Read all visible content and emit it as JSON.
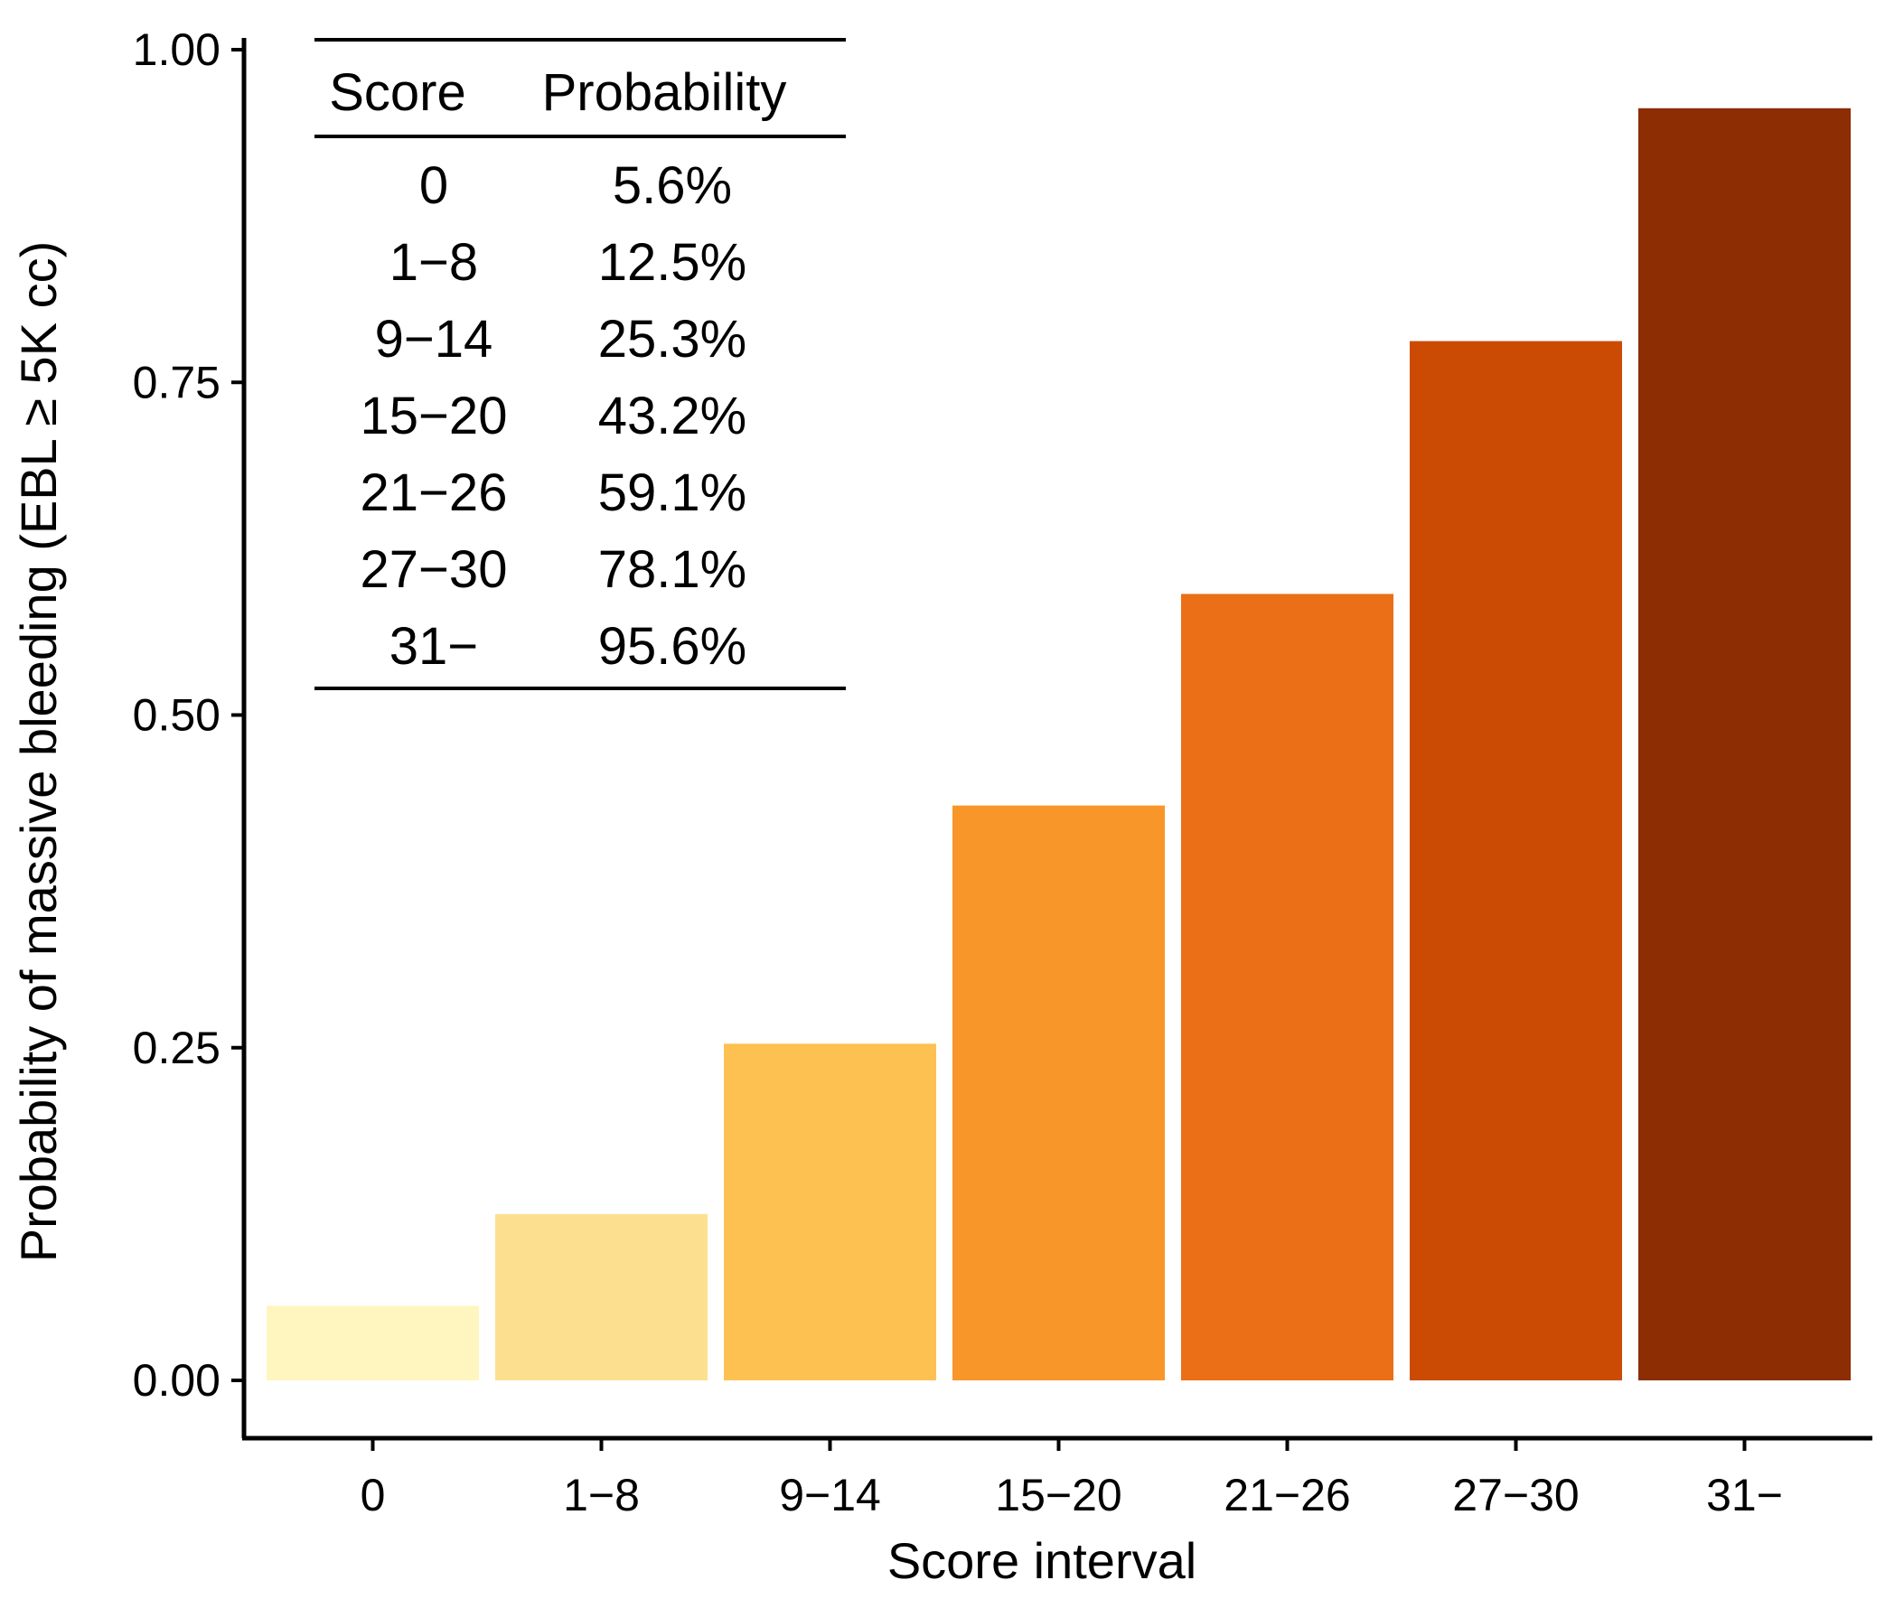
{
  "chart_data": {
    "type": "bar",
    "title": "",
    "xlabel": "Score interval",
    "ylabel": "Probability of massive bleeding (EBL ≥ 5K cc)",
    "categories": [
      "0",
      "1−8",
      "9−14",
      "15−20",
      "21−26",
      "27−30",
      "31−"
    ],
    "values": [
      0.056,
      0.125,
      0.253,
      0.432,
      0.591,
      0.781,
      0.956
    ],
    "colors": [
      "#FFF5BE",
      "#FDE08F",
      "#FDC152",
      "#F99629",
      "#EA6F16",
      "#CB4B05",
      "#8C2D04"
    ],
    "ylim": [
      0,
      1
    ],
    "yticks": [
      "0.00",
      "0.25",
      "0.50",
      "0.75",
      "1.00"
    ],
    "ytick_values": [
      0,
      0.25,
      0.5,
      0.75,
      1
    ],
    "grid": false,
    "inset_table": {
      "headers": [
        "Score",
        "Probability"
      ],
      "rows": [
        [
          "0",
          "5.6%"
        ],
        [
          "1−8",
          "12.5%"
        ],
        [
          "9−14",
          "25.3%"
        ],
        [
          "15−20",
          "43.2%"
        ],
        [
          "21−26",
          "59.1%"
        ],
        [
          "27−30",
          "78.1%"
        ],
        [
          "31−",
          "95.6%"
        ]
      ],
      "placement": "top-left"
    }
  }
}
